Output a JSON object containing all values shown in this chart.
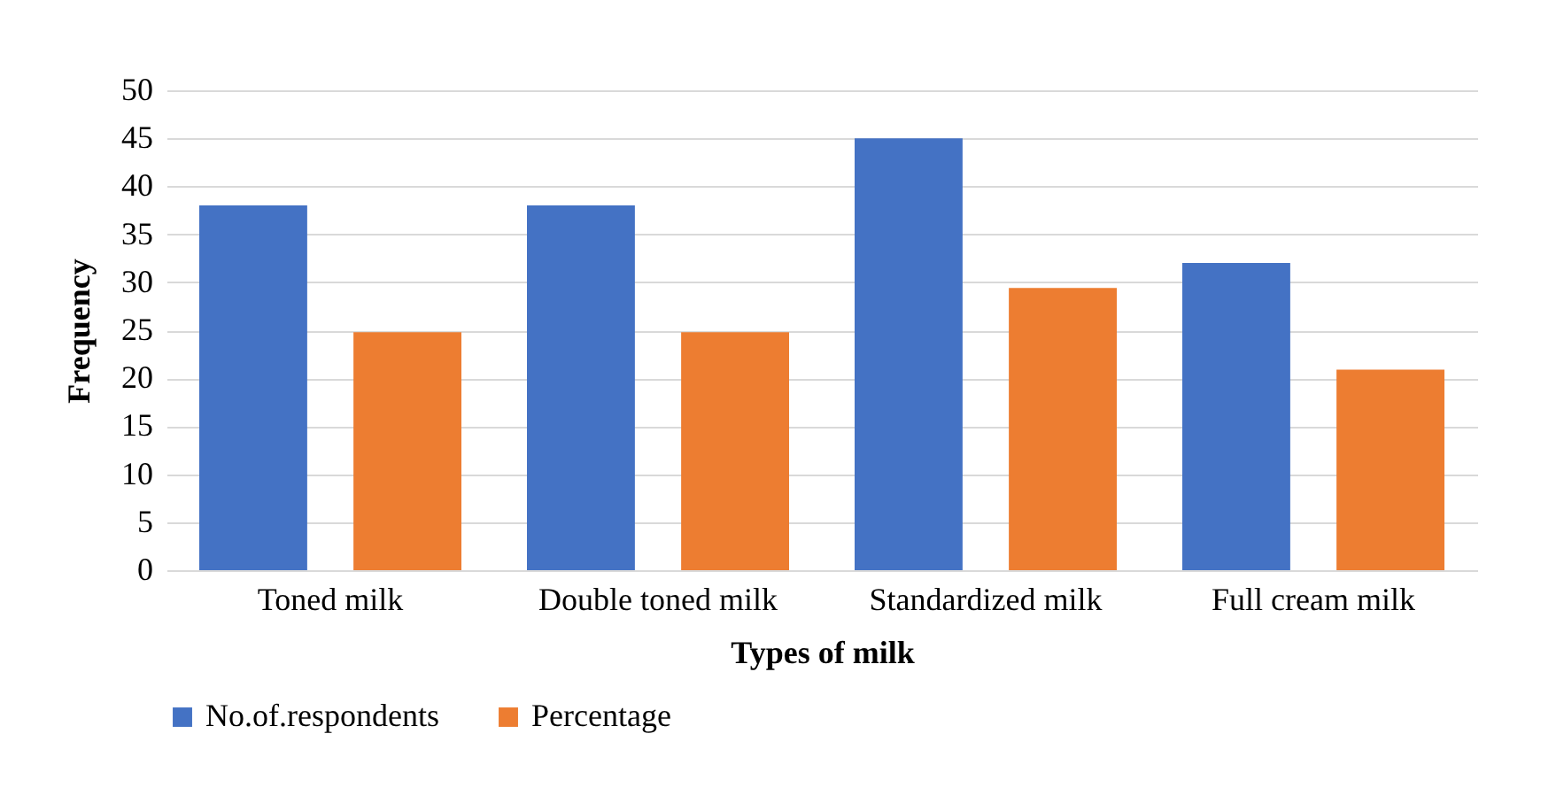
{
  "chart_data": {
    "type": "bar",
    "xlabel": "Types of milk",
    "ylabel": "Frequency",
    "categories": [
      "Toned milk",
      "Double toned milk",
      "Standardized milk",
      "Full cream milk"
    ],
    "series": [
      {
        "name": "No.of.respondents",
        "color": "#4472c4",
        "values": [
          38,
          38,
          45,
          32
        ]
      },
      {
        "name": "Percentage",
        "color": "#ed7d31",
        "values": [
          24.8,
          24.8,
          29.4,
          20.9
        ]
      }
    ],
    "ylim": [
      0,
      50
    ],
    "yticks": [
      0,
      5,
      10,
      15,
      20,
      25,
      30,
      35,
      40,
      45,
      50
    ],
    "grid": "y",
    "legend": "bottom"
  }
}
